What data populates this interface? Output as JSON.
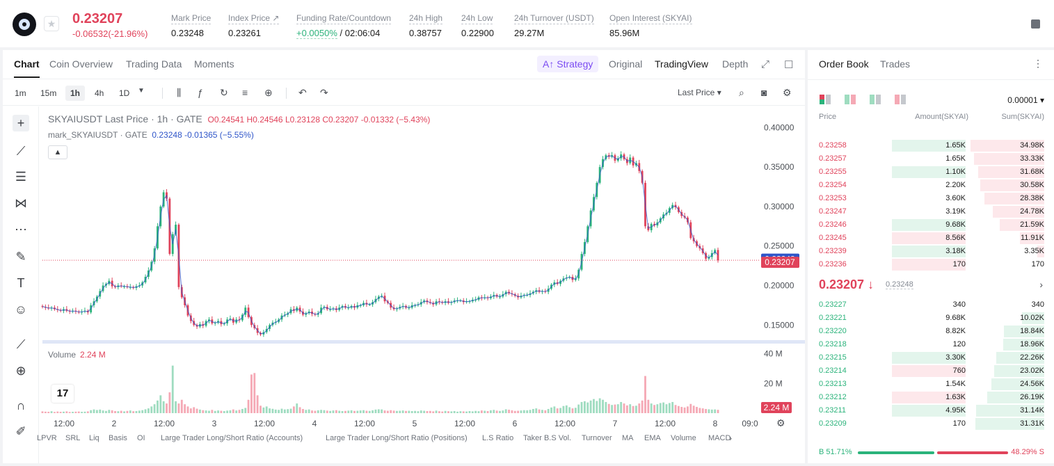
{
  "header": {
    "price": "0.23207",
    "change": "-0.06532(-21.96%)",
    "stats": [
      {
        "label": "Mark Price",
        "value": "0.23248"
      },
      {
        "label": "Index Price ↗",
        "value": "0.23261"
      },
      {
        "label": "Funding Rate/Countdown",
        "value_green": "+0.0050%",
        "value": " / 02:06:04"
      },
      {
        "label": "24h High",
        "value": "0.38757"
      },
      {
        "label": "24h Low",
        "value": "0.22900"
      },
      {
        "label": "24h Turnover (USDT)",
        "value": "29.27M"
      },
      {
        "label": "Open Interest (SKYAI)",
        "value": "85.96M"
      }
    ]
  },
  "chart_tabs": [
    "Chart",
    "Coin Overview",
    "Trading Data",
    "Moments"
  ],
  "strategy_label": "Strategy",
  "views": [
    "Original",
    "TradingView",
    "Depth"
  ],
  "timeframes": [
    "1m",
    "15m",
    "1h",
    "4h",
    "1D"
  ],
  "last_price_select": "Last Price",
  "legend": {
    "symbol": "SKYAIUSDT Last Price · 1h · GATE",
    "ohlc": "O0.24541  H0.24546  L0.23128  C0.23207  -0.01332  (−5.43%)",
    "mark_name": "mark_SKYAIUSDT · GATE",
    "mark_vals": "0.23248  -0.01365  (−5.55%)"
  },
  "volume_label": "Volume",
  "volume_value": "2.24 M",
  "price_axis": [
    "0.40000",
    "0.35000",
    "0.30000",
    "0.25000",
    "0.20000",
    "0.15000"
  ],
  "mark_tag": "0.23248",
  "last_tag": "0.23207",
  "vol_axis": [
    "40 M",
    "20 M"
  ],
  "vol_tag": "2.24 M",
  "time_axis": [
    "12:00",
    "2",
    "12:00",
    "3",
    "12:00",
    "4",
    "12:00",
    "5",
    "12:00",
    "6",
    "12:00",
    "7",
    "12:00",
    "8",
    "09:0"
  ],
  "indicators": [
    "LPVR",
    "SRL",
    "Liq",
    "Basis",
    "OI",
    "Large Trader Long/Short Ratio (Accounts)",
    "Large Trader Long/Short Ratio (Positions)",
    "L.S Ratio",
    "Taker B.S Vol.",
    "Turnover",
    "MA",
    "EMA",
    "Volume",
    "MACD"
  ],
  "chart_data": {
    "type": "candlestick",
    "title": "SKYAIUSDT Last Price · 1h · GATE",
    "ylim": [
      0.13,
      0.41
    ],
    "close": [
      0.173,
      0.172,
      0.171,
      0.172,
      0.17,
      0.169,
      0.168,
      0.17,
      0.168,
      0.167,
      0.168,
      0.167,
      0.166,
      0.167,
      0.168,
      0.166,
      0.175,
      0.18,
      0.186,
      0.193,
      0.2,
      0.202,
      0.206,
      0.199,
      0.198,
      0.2,
      0.199,
      0.199,
      0.198,
      0.198,
      0.197,
      0.199,
      0.2,
      0.204,
      0.211,
      0.219,
      0.23,
      0.247,
      0.275,
      0.3,
      0.318,
      0.31,
      0.24,
      0.265,
      0.277,
      0.198,
      0.185,
      0.175,
      0.162,
      0.155,
      0.15,
      0.148,
      0.151,
      0.149,
      0.155,
      0.157,
      0.152,
      0.153,
      0.155,
      0.151,
      0.152,
      0.157,
      0.158,
      0.153,
      0.157,
      0.156,
      0.163,
      0.172,
      0.16,
      0.15,
      0.146,
      0.14,
      0.138,
      0.141,
      0.145,
      0.15,
      0.153,
      0.154,
      0.157,
      0.162,
      0.163,
      0.165,
      0.17,
      0.168,
      0.172,
      0.167,
      0.163,
      0.165,
      0.167,
      0.164,
      0.163,
      0.165,
      0.172,
      0.173,
      0.17,
      0.17,
      0.171,
      0.169,
      0.172,
      0.174,
      0.172,
      0.172,
      0.174,
      0.172,
      0.175,
      0.175,
      0.178,
      0.176,
      0.176,
      0.179,
      0.183,
      0.186,
      0.187,
      0.18,
      0.178,
      0.172,
      0.17,
      0.171,
      0.173,
      0.174,
      0.172,
      0.172,
      0.175,
      0.175,
      0.176,
      0.179,
      0.181,
      0.179,
      0.178,
      0.176,
      0.18,
      0.179,
      0.178,
      0.18,
      0.178,
      0.179,
      0.181,
      0.181,
      0.181,
      0.179,
      0.18,
      0.18,
      0.182,
      0.182,
      0.185,
      0.184,
      0.185,
      0.184,
      0.186,
      0.188,
      0.186,
      0.186,
      0.189,
      0.192,
      0.19,
      0.189,
      0.187,
      0.185,
      0.187,
      0.188,
      0.188,
      0.19,
      0.192,
      0.194,
      0.192,
      0.193,
      0.192,
      0.196,
      0.201,
      0.204,
      0.202,
      0.206,
      0.209,
      0.21,
      0.211,
      0.207,
      0.209,
      0.22,
      0.24,
      0.255,
      0.275,
      0.295,
      0.312,
      0.33,
      0.35,
      0.36,
      0.365,
      0.363,
      0.365,
      0.358,
      0.361,
      0.366,
      0.36,
      0.355,
      0.362,
      0.352,
      0.355,
      0.345,
      0.33,
      0.275,
      0.27,
      0.278,
      0.276,
      0.28,
      0.285,
      0.29,
      0.292,
      0.298,
      0.302,
      0.299,
      0.293,
      0.288,
      0.286,
      0.28,
      0.26,
      0.256,
      0.25,
      0.247,
      0.241,
      0.234,
      0.236,
      0.241,
      0.245,
      0.232
    ],
    "volume_m": [
      1.2,
      1.0,
      0.9,
      1.3,
      0.8,
      1.1,
      0.9,
      1.0,
      1.2,
      0.8,
      0.9,
      1.0,
      1.1,
      0.9,
      1.0,
      1.2,
      2.0,
      2.5,
      2.1,
      2.4,
      1.8,
      1.5,
      2.2,
      1.9,
      1.4,
      1.3,
      1.6,
      1.2,
      1.5,
      1.8,
      1.3,
      1.4,
      1.7,
      2.0,
      2.6,
      3.2,
      4.5,
      6.0,
      8.5,
      12.0,
      8.0,
      6.5,
      14.0,
      32.0,
      8.0,
      6.5,
      9.0,
      6.0,
      4.5,
      3.2,
      4.0,
      3.0,
      2.4,
      2.0,
      1.8,
      1.6,
      2.2,
      1.5,
      1.8,
      1.6,
      1.4,
      1.7,
      1.9,
      2.5,
      1.8,
      2.2,
      2.8,
      3.5,
      9.0,
      26.0,
      27.0,
      12.0,
      5.0,
      3.8,
      4.5,
      3.2,
      2.9,
      2.4,
      2.2,
      3.0,
      2.5,
      2.7,
      3.0,
      4.5,
      6.5,
      4.0,
      2.8,
      2.2,
      2.5,
      1.8,
      1.6,
      1.9,
      2.2,
      2.0,
      1.7,
      1.5,
      1.8,
      2.0,
      1.6,
      1.4,
      1.5,
      1.7,
      1.9,
      1.5,
      1.6,
      1.8,
      2.0,
      1.6,
      1.5,
      1.9,
      2.4,
      2.6,
      2.5,
      1.8,
      1.6,
      2.0,
      1.7,
      1.5,
      1.6,
      1.8,
      1.5,
      1.6,
      1.4,
      1.5,
      1.3,
      1.8,
      1.6,
      1.4,
      1.5,
      1.2,
      1.7,
      1.3,
      1.1,
      1.5,
      1.3,
      1.2,
      1.4,
      1.0,
      1.3,
      1.2,
      1.1,
      1.4,
      1.2,
      1.5,
      1.3,
      1.8,
      1.6,
      1.4,
      1.9,
      2.2,
      1.7,
      1.5,
      1.8,
      2.6,
      2.3,
      1.9,
      1.5,
      1.6,
      1.8,
      2.0,
      1.9,
      2.2,
      2.8,
      3.2,
      2.5,
      2.2,
      1.9,
      2.8,
      3.8,
      4.5,
      3.2,
      3.5,
      4.8,
      5.2,
      4.0,
      3.2,
      3.6,
      5.8,
      7.5,
      8.0,
      7.2,
      8.5,
      9.5,
      8.2,
      10.0,
      9.0,
      7.5,
      6.2,
      5.5,
      5.8,
      6.0,
      7.5,
      6.5,
      5.2,
      6.0,
      4.8,
      5.0,
      6.5,
      8.5,
      25.0,
      9.0,
      6.5,
      5.5,
      6.0,
      6.8,
      7.2,
      6.0,
      6.8,
      7.5,
      5.5,
      4.8,
      4.2,
      3.8,
      4.5,
      6.2,
      5.0,
      4.2,
      3.5,
      3.2,
      2.8,
      2.6,
      2.4,
      2.5,
      2.24
    ]
  },
  "orderbook": {
    "tabs": [
      "Order Book",
      "Trades"
    ],
    "precision": "0.00001",
    "headers": [
      "Price",
      "Amount(SKYAI)",
      "Sum(SKYAI)"
    ],
    "asks": [
      {
        "price": "0.23258",
        "amount": "1.65K",
        "sum": "34.98K",
        "amt_frac": 0.18,
        "sum_frac": 1.0
      },
      {
        "price": "0.23257",
        "amount": "1.65K",
        "sum": "33.33K",
        "amt_frac": 0.0,
        "sum_frac": 0.95
      },
      {
        "price": "0.23255",
        "amount": "1.10K",
        "sum": "31.68K",
        "amt_frac": 0.18,
        "sum_frac": 0.9
      },
      {
        "price": "0.23254",
        "amount": "2.20K",
        "sum": "30.58K",
        "amt_frac": 0.0,
        "sum_frac": 0.87
      },
      {
        "price": "0.23253",
        "amount": "3.60K",
        "sum": "28.38K",
        "amt_frac": 0.0,
        "sum_frac": 0.81
      },
      {
        "price": "0.23247",
        "amount": "3.19K",
        "sum": "24.78K",
        "amt_frac": 0.0,
        "sum_frac": 0.7
      },
      {
        "price": "0.23246",
        "amount": "9.68K",
        "sum": "21.59K",
        "amt_frac": 0.18,
        "sum_frac": 0.6
      },
      {
        "price": "0.23245",
        "amount": "8.56K",
        "sum": "11.91K",
        "amt_frac": 0.18,
        "sum_frac": 0.33
      },
      {
        "price": "0.23239",
        "amount": "3.18K",
        "sum": "3.35K",
        "amt_frac": 0.18,
        "sum_frac": 0.09
      },
      {
        "price": "0.23236",
        "amount": "170",
        "sum": "170",
        "amt_frac": 0.18,
        "sum_frac": 0.0
      }
    ],
    "mid_price": "0.23207 ↓",
    "mid_sub": "0.23248",
    "bids": [
      {
        "price": "0.23227",
        "amount": "340",
        "sum": "340",
        "amt_frac": 0.0,
        "sum_frac": 0.0
      },
      {
        "price": "0.23221",
        "amount": "9.68K",
        "sum": "10.02K",
        "amt_frac": 0.0,
        "sum_frac": 0.3
      },
      {
        "price": "0.23220",
        "amount": "8.82K",
        "sum": "18.84K",
        "amt_frac": 0.0,
        "sum_frac": 0.55
      },
      {
        "price": "0.23218",
        "amount": "120",
        "sum": "18.96K",
        "amt_frac": 0.0,
        "sum_frac": 0.56
      },
      {
        "price": "0.23215",
        "amount": "3.30K",
        "sum": "22.26K",
        "amt_frac": 0.18,
        "sum_frac": 0.65
      },
      {
        "price": "0.23214",
        "amount": "760",
        "sum": "23.02K",
        "amt_frac": 0.18,
        "sum_frac": 0.68
      },
      {
        "price": "0.23213",
        "amount": "1.54K",
        "sum": "24.56K",
        "amt_frac": 0.0,
        "sum_frac": 0.72
      },
      {
        "price": "0.23212",
        "amount": "1.63K",
        "sum": "26.19K",
        "amt_frac": 0.18,
        "sum_frac": 0.77
      },
      {
        "price": "0.23211",
        "amount": "4.95K",
        "sum": "31.14K",
        "amt_frac": 0.18,
        "sum_frac": 0.92
      },
      {
        "price": "0.23209",
        "amount": "170",
        "sum": "31.31K",
        "amt_frac": 0.0,
        "sum_frac": 0.93
      }
    ],
    "buy_ratio": "B 51.71%",
    "sell_ratio": "48.29% S",
    "buy_frac": 0.5171
  },
  "colors": {
    "up": "#2bb37b",
    "down": "#e0435b",
    "up_vol": "#9fdcc0",
    "down_vol": "#f5a9b5",
    "mark": "#2f55c9"
  }
}
